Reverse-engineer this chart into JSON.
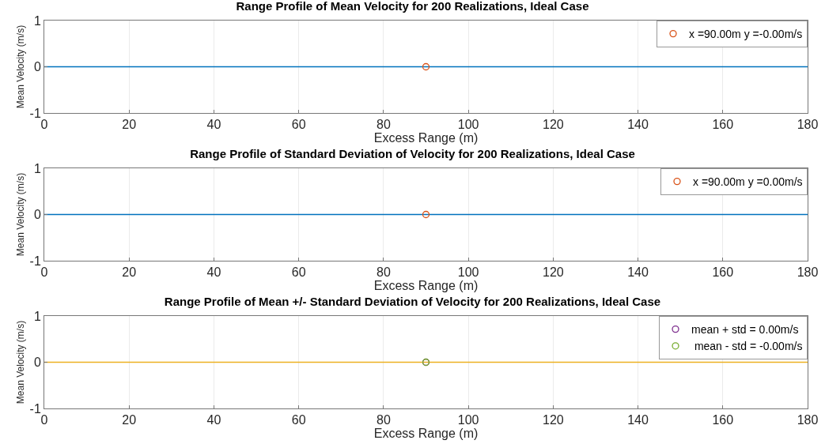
{
  "chart_data": [
    {
      "type": "line",
      "title": "Range Profile of Mean Velocity for 200 Realizations, Ideal Case",
      "xlabel": "Excess Range (m)",
      "ylabel": "Mean Velocity (m/s)",
      "xlim": [
        0,
        180
      ],
      "xticks": [
        0,
        20,
        40,
        60,
        80,
        100,
        120,
        140,
        160,
        180
      ],
      "ylim": [
        -1,
        1
      ],
      "yticks": [
        -1,
        0,
        1
      ],
      "grid": true,
      "legend": "top right",
      "series": [
        {
          "color": "#0072bd",
          "x": [
            0,
            180
          ],
          "values": [
            0,
            0
          ],
          "marker": "none"
        },
        {
          "type": "scatter",
          "name": "x =90.00m y =-0.00m/s",
          "color": "#d95319",
          "x": [
            90
          ],
          "values": [
            0
          ],
          "marker": "circle"
        }
      ]
    },
    {
      "type": "line",
      "title": "Range Profile of Standard Deviation of Velocity for 200 Realizations, Ideal Case",
      "xlabel": "Excess Range (m)",
      "ylabel": "Mean Velocity (m/s)",
      "xlim": [
        0,
        180
      ],
      "xticks": [
        0,
        20,
        40,
        60,
        80,
        100,
        120,
        140,
        160,
        180
      ],
      "ylim": [
        -1,
        1
      ],
      "yticks": [
        -1,
        0,
        1
      ],
      "grid": true,
      "legend": "top right",
      "series": [
        {
          "color": "#0072bd",
          "x": [
            0,
            180
          ],
          "values": [
            0,
            0
          ],
          "marker": "none"
        },
        {
          "type": "scatter",
          "name": "x =90.00m y =0.00m/s",
          "color": "#d95319",
          "x": [
            90
          ],
          "values": [
            0
          ],
          "marker": "circle"
        }
      ]
    },
    {
      "type": "line",
      "title": "Range Profile of Mean +/- Standard Deviation of Velocity for 200 Realizations, Ideal Case",
      "xlabel": "Excess Range (m)",
      "ylabel": "Mean Velocity (m/s)",
      "xlim": [
        0,
        180
      ],
      "xticks": [
        0,
        20,
        40,
        60,
        80,
        100,
        120,
        140,
        160,
        180
      ],
      "ylim": [
        -1,
        1
      ],
      "yticks": [
        -1,
        0,
        1
      ],
      "grid": true,
      "legend": "top right",
      "series": [
        {
          "color": "#edb120",
          "x": [
            0,
            180
          ],
          "values": [
            0,
            0
          ],
          "marker": "none"
        },
        {
          "type": "scatter",
          "name": "mean + std = 0.00m/s",
          "color": "#7e2f8e",
          "x": [
            90
          ],
          "values": [
            0
          ],
          "marker": "circle"
        },
        {
          "type": "scatter",
          "name": " mean - std = -0.00m/s",
          "color": "#77ac30",
          "x": [
            90
          ],
          "values": [
            0
          ],
          "marker": "circle"
        }
      ]
    }
  ]
}
